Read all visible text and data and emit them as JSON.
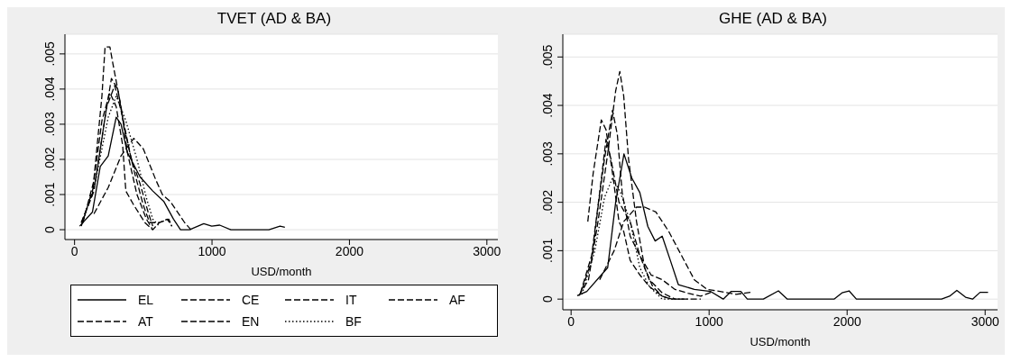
{
  "chart_data": [
    {
      "type": "line",
      "title": "TVET (AD & BA)",
      "xlabel": "USD/month",
      "xlim": [
        -70,
        3080
      ],
      "xticks": [
        0,
        1000,
        2000,
        3000
      ],
      "ylim": [
        -0.00028,
        0.00556
      ],
      "yticks": [
        0,
        {
          "value": 0.001,
          "label": ".001"
        },
        {
          "value": 0.002,
          "label": ".002"
        },
        {
          "value": 0.003,
          "label": ".003"
        },
        {
          "value": 0.004,
          "label": ".004"
        },
        {
          "value": 0.005,
          "label": ".005"
        }
      ],
      "grid": "y",
      "legend": "bottom",
      "series": [
        {
          "name": "EL",
          "color": "#000000",
          "line_style": "solid",
          "x": [
            37,
            130,
            187,
            245,
            303,
            338,
            384,
            477,
            569,
            650,
            720,
            771,
            836,
            940,
            998,
            1056,
            1137,
            1414,
            1495,
            1530
          ],
          "values": [
            0.0001,
            0.0005,
            0.0018,
            0.0021,
            0.0032,
            0.003,
            0.0022,
            0.0015,
            0.0011,
            0.0008,
            0.0003,
            0,
            0,
            0.00017,
            0.0001,
            0.00013,
            0,
            0,
            0.0001,
            7e-05
          ]
        },
        {
          "name": "CE",
          "color": "#000000",
          "line_style": "dashed",
          "x": [
            141,
            245,
            338,
            431,
            500,
            593,
            639,
            697,
            801,
            847
          ],
          "values": [
            0.00045,
            0.0012,
            0.0021,
            0.0026,
            0.0023,
            0.0014,
            0.001,
            0.0008,
            0.0002,
            0
          ]
        },
        {
          "name": "IT",
          "color": "#000000",
          "line_style": "dashed",
          "x": [
            49,
            141,
            222,
            268,
            315,
            361,
            431,
            500,
            546,
            616,
            685,
            708
          ],
          "values": [
            0.0002,
            0.0011,
            0.0032,
            0.0043,
            0.004,
            0.0029,
            0.0017,
            0.0007,
            0.0002,
            0.0002,
            0.0003,
            0.0001
          ]
        },
        {
          "name": "AF",
          "color": "#000000",
          "line_style": "dashed",
          "x": [
            49,
            153,
            234,
            292,
            350,
            407,
            477,
            535,
            569
          ],
          "values": [
            0.0001,
            0.0014,
            0.0035,
            0.0041,
            0.0032,
            0.0021,
            0.0013,
            0.0005,
            0.0001
          ]
        },
        {
          "name": "AT",
          "color": "#000000",
          "line_style": "dashed",
          "x": [
            60,
            141,
            199,
            257,
            303,
            350,
            373,
            431,
            512,
            569,
            616,
            674,
            708
          ],
          "values": [
            0.0002,
            0.0014,
            0.0031,
            0.0039,
            0.0035,
            0.0024,
            0.0011,
            0.0007,
            0.0002,
            0,
            0.0002,
            0.0003,
            0.0001
          ]
        },
        {
          "name": "EN",
          "color": "#000000",
          "line_style": "dashed",
          "x": [
            49,
            130,
            199,
            222,
            257,
            280,
            338,
            384,
            454,
            523,
            569
          ],
          "values": [
            0.0002,
            0.001,
            0.0038,
            0.0052,
            0.0052,
            0.0047,
            0.0035,
            0.0022,
            0.001,
            0.0003,
            0
          ]
        },
        {
          "name": "BF",
          "color": "#000000",
          "line_style": "dotted",
          "x": [
            60,
            153,
            245,
            303,
            373,
            454,
            523,
            569,
            616
          ],
          "values": [
            0.0002,
            0.0014,
            0.0032,
            0.0038,
            0.0031,
            0.002,
            0.0009,
            0.0003,
            0.0001
          ]
        }
      ]
    },
    {
      "type": "line",
      "title": "GHE (AD & BA)",
      "xlabel": "USD/month",
      "xlim": [
        -60,
        3090
      ],
      "xticks": [
        0,
        1000,
        2000,
        3000
      ],
      "ylim": [
        -0.00022,
        0.00547
      ],
      "yticks": [
        0,
        {
          "value": 0.001,
          "label": ".001"
        },
        {
          "value": 0.002,
          "label": ".002"
        },
        {
          "value": 0.003,
          "label": ".003"
        },
        {
          "value": 0.004,
          "label": ".004"
        },
        {
          "value": 0.005,
          "label": ".005"
        }
      ],
      "grid": "y",
      "series": [
        {
          "color": "#000000",
          "line_style": "solid",
          "x": [
            44,
            114,
            265,
            323,
            383,
            440,
            498,
            556,
            609,
            660,
            719,
            777,
            893,
            1009,
            1102,
            1160,
            1230,
            1277,
            1393,
            1502,
            1567,
            1905,
            1963,
            2014,
            2067,
            2684,
            2742,
            2795,
            2858,
            2909,
            2963,
            3021
          ],
          "values": [
            7e-05,
            0.00016,
            0.00065,
            0.002,
            0.003,
            0.0025,
            0.0022,
            0.0015,
            0.0012,
            0.0013,
            0.0008,
            0.0003,
            0.0002,
            0.00016,
            0,
            0.00016,
            0.00016,
            0,
            0,
            0.00017,
            0,
            0,
            0.00013,
            0.00017,
            0,
            0,
            6e-05,
            0.00018,
            4e-05,
            0,
            0.00014,
            0.00014
          ]
        },
        {
          "color": "#000000",
          "line_style": "dashed",
          "x": [
            207,
            312,
            381,
            474,
            533,
            614,
            707,
            800,
            893,
            986,
            1079,
            1195,
            1300
          ],
          "values": [
            0.0004,
            0.001,
            0.0016,
            0.0019,
            0.0019,
            0.0018,
            0.0014,
            0.0009,
            0.0004,
            0.0002,
            0.00016,
            0.0001,
            0.00014
          ]
        },
        {
          "color": "#000000",
          "line_style": "dashed",
          "x": [
            67,
            149,
            207,
            253,
            288,
            347,
            428,
            498,
            579,
            660,
            753,
            847,
            940,
            1033
          ],
          "values": [
            0.00012,
            0.0009,
            0.0022,
            0.0033,
            0.0029,
            0.002,
            0.0016,
            0.0009,
            0.0005,
            0.0004,
            0.0002,
            0.00012,
            6e-05,
            0.00016
          ]
        },
        {
          "color": "#000000",
          "line_style": "dashed",
          "x": [
            79,
            149,
            195,
            242,
            300,
            335,
            370,
            428,
            498,
            567,
            660,
            753,
            940
          ],
          "values": [
            0.0002,
            0.0008,
            0.0019,
            0.0029,
            0.0039,
            0.0034,
            0.0022,
            0.0013,
            0.0009,
            0.0004,
            0.00013,
            0,
            0
          ]
        },
        {
          "color": "#000000",
          "line_style": "dashed",
          "x": [
            121,
            160,
            219,
            253,
            300,
            347,
            381,
            428,
            498,
            567,
            660,
            730
          ],
          "values": [
            0.0016,
            0.0026,
            0.0037,
            0.0035,
            0.0026,
            0.0016,
            0.0014,
            0.0008,
            0.0005,
            0.00026,
            6e-05,
            0
          ]
        },
        {
          "color": "#000000",
          "line_style": "dashed",
          "x": [
            56,
            126,
            195,
            265,
            323,
            353,
            381,
            416,
            474,
            533,
            591,
            660,
            730,
            847
          ],
          "values": [
            7e-05,
            0.0004,
            0.0016,
            0.003,
            0.0043,
            0.0047,
            0.0042,
            0.0029,
            0.0016,
            0.00065,
            0.00026,
            6e-05,
            0,
            0
          ]
        },
        {
          "color": "#000000",
          "line_style": "dotted",
          "x": [
            79,
            172,
            242,
            300,
            358,
            428,
            498,
            567,
            660,
            800
          ],
          "values": [
            0.0001,
            0.001,
            0.0021,
            0.0025,
            0.0022,
            0.0016,
            0.00065,
            0.00026,
            0,
            0
          ]
        }
      ]
    }
  ]
}
